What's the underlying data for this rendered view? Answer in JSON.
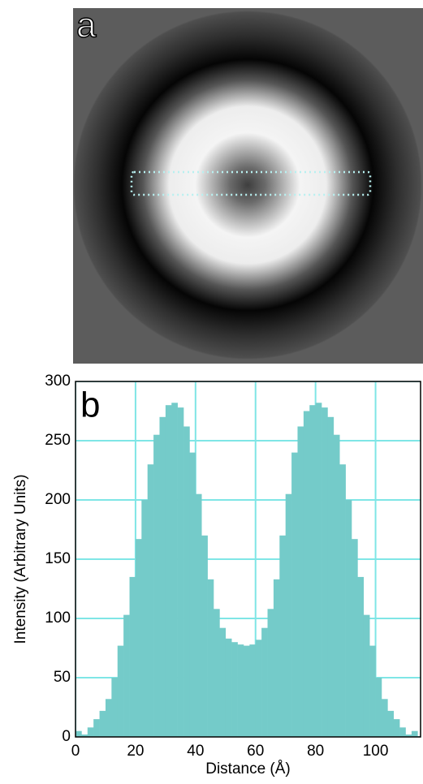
{
  "panel_a": {
    "label": "a"
  },
  "chart_data": {
    "type": "histogram",
    "panel_label": "b",
    "xlabel": "Distance (Å)",
    "ylabel": "Intensity (Arbitrary Units)",
    "bins": [
      0,
      2,
      4,
      6,
      8,
      10,
      12,
      14,
      16,
      18,
      20,
      22,
      24,
      26,
      28,
      30,
      32,
      34,
      36,
      38,
      40,
      42,
      44,
      46,
      48,
      50,
      52,
      54,
      56,
      58,
      60,
      62,
      64,
      66,
      68,
      70,
      72,
      74,
      76,
      78,
      80,
      82,
      84,
      86,
      88,
      90,
      92,
      94,
      96,
      98,
      100,
      102,
      104,
      106,
      108,
      110,
      112,
      114
    ],
    "values": [
      5,
      2,
      8,
      15,
      22,
      32,
      50,
      77,
      103,
      135,
      167,
      200,
      230,
      255,
      270,
      280,
      282,
      278,
      262,
      240,
      205,
      170,
      133,
      108,
      92,
      83,
      80,
      78,
      77,
      78,
      82,
      92,
      108,
      133,
      170,
      205,
      240,
      262,
      275,
      280,
      282,
      278,
      270,
      255,
      230,
      200,
      167,
      135,
      103,
      77,
      50,
      32,
      22,
      15,
      8,
      2,
      5
    ],
    "color": "#74cbc9",
    "grid": true,
    "grid_color": "#7fe6e6",
    "xlim": [
      0,
      115
    ],
    "xticks": [
      0,
      20,
      40,
      60,
      80,
      100
    ],
    "ylim": [
      0,
      300
    ],
    "yticks": [
      0,
      50,
      100,
      150,
      200,
      250,
      300
    ]
  }
}
